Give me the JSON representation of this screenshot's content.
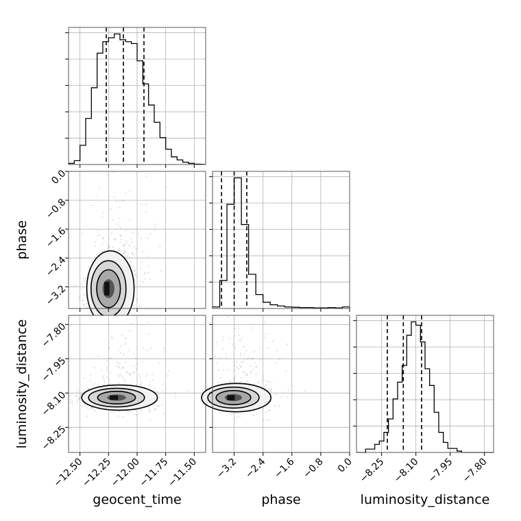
{
  "chart_data": {
    "type": "corner",
    "parameters": [
      "geocent_time",
      "phase",
      "luminosity_distance"
    ],
    "panels": {
      "hist_geocent_time": {
        "type": "histogram",
        "xlim": [
          -12.6,
          -11.4
        ],
        "bin_edges": [
          -12.6,
          -12.55,
          -12.5,
          -12.45,
          -12.4,
          -12.35,
          -12.3,
          -12.25,
          -12.2,
          -12.15,
          -12.1,
          -12.05,
          -12.0,
          -11.95,
          -11.9,
          -11.85,
          -11.8,
          -11.75,
          -11.7,
          -11.65,
          -11.6,
          -11.55,
          -11.5,
          -11.45
        ],
        "counts": [
          0.3,
          1.0,
          5.0,
          12.0,
          20.0,
          29.0,
          32.0,
          33.0,
          34.0,
          32.5,
          32.0,
          31.5,
          27.0,
          21.0,
          15.5,
          11.0,
          7.0,
          4.0,
          2.0,
          1.2,
          0.6,
          0.3,
          0.1
        ],
        "quantile_lines": [
          -12.27,
          -12.12,
          -11.94
        ]
      },
      "hist_phase": {
        "type": "histogram",
        "xlim": [
          -3.8,
          0.0
        ],
        "bin_edges": [
          -3.8,
          -3.6,
          -3.4,
          -3.2,
          -3.0,
          -2.8,
          -2.6,
          -2.4,
          -2.2,
          -2.0,
          -1.8,
          -1.6,
          -1.4,
          -1.2,
          -1.0,
          -0.8,
          -0.6,
          -0.4,
          -0.2,
          0.0
        ],
        "counts": [
          0.5,
          9.0,
          33.5,
          42.0,
          27.0,
          11.0,
          4.5,
          2.0,
          1.2,
          0.8,
          0.5,
          0.4,
          0.3,
          0.3,
          0.2,
          0.2,
          0.3,
          0.2,
          0.5
        ],
        "quantile_lines": [
          -3.55,
          -3.2,
          -2.85
        ]
      },
      "hist_luminosity_distance": {
        "type": "histogram",
        "xlim": [
          -8.36,
          -7.76
        ],
        "bin_edges": [
          -8.36,
          -8.34,
          -8.32,
          -8.3,
          -8.28,
          -8.26,
          -8.24,
          -8.22,
          -8.2,
          -8.18,
          -8.16,
          -8.14,
          -8.12,
          -8.1,
          -8.08,
          -8.06,
          -8.04,
          -8.02,
          -8.0,
          -7.98,
          -7.96,
          -7.94,
          -7.92,
          -7.9,
          -7.88,
          -7.86,
          -7.84,
          -7.82,
          -7.8
        ],
        "counts": [
          0.0,
          0.0,
          0.5,
          0.5,
          1.2,
          1.7,
          3.0,
          5.0,
          8.0,
          10.5,
          13.0,
          17.5,
          19.5,
          19.0,
          16.5,
          12.5,
          10.0,
          6.0,
          3.0,
          1.5,
          0.6,
          0.6,
          0.2,
          0.0,
          0.0,
          0.0,
          0.0,
          0.0
        ],
        "quantile_lines": [
          -8.225,
          -8.155,
          -8.075
        ]
      },
      "scatter_geocent_time_phase": {
        "type": "2d-density",
        "x_param": "geocent_time",
        "y_param": "phase",
        "xlim": [
          -12.6,
          -11.4
        ],
        "ylim": [
          -3.8,
          0.0
        ],
        "mode": {
          "x": -12.25,
          "y": -3.25
        },
        "contour_levels": [
          0.12,
          0.3,
          0.55,
          0.8
        ]
      },
      "scatter_geocent_time_luminosity_distance": {
        "type": "2d-density",
        "x_param": "geocent_time",
        "y_param": "luminosity_distance",
        "xlim": [
          -12.6,
          -11.4
        ],
        "ylim": [
          -8.36,
          -7.76
        ],
        "mode": {
          "x": -12.18,
          "y": -8.12
        },
        "contour_levels": [
          0.12,
          0.3,
          0.55,
          0.8
        ]
      },
      "scatter_phase_luminosity_distance": {
        "type": "2d-density",
        "x_param": "phase",
        "y_param": "luminosity_distance",
        "xlim": [
          -3.8,
          0.0
        ],
        "ylim": [
          -8.36,
          -7.76
        ],
        "mode": {
          "x": -3.22,
          "y": -8.12
        },
        "contour_levels": [
          0.12,
          0.3,
          0.55,
          0.8
        ]
      }
    },
    "axes": {
      "geocent_time": {
        "ticks": [
          -12.5,
          -12.25,
          -12.0,
          -11.75,
          -11.5
        ],
        "tick_labels": [
          "−12.50",
          "−12.25",
          "−12.00",
          "−11.75",
          "−11.50"
        ],
        "label": "geocent_time"
      },
      "phase": {
        "ticks": [
          -3.2,
          -2.4,
          -1.6,
          -0.8,
          0.0
        ],
        "tick_labels": [
          "−3.2",
          "−2.4",
          "−1.6",
          "−0.8",
          "0.0"
        ],
        "label": "phase"
      },
      "luminosity_distance": {
        "ticks": [
          -8.25,
          -8.1,
          -7.95,
          -7.8
        ],
        "tick_labels": [
          "−8.25",
          "−8.10",
          "−7.95",
          "−7.80"
        ],
        "label": "luminosity_distance"
      }
    },
    "grid": true
  }
}
